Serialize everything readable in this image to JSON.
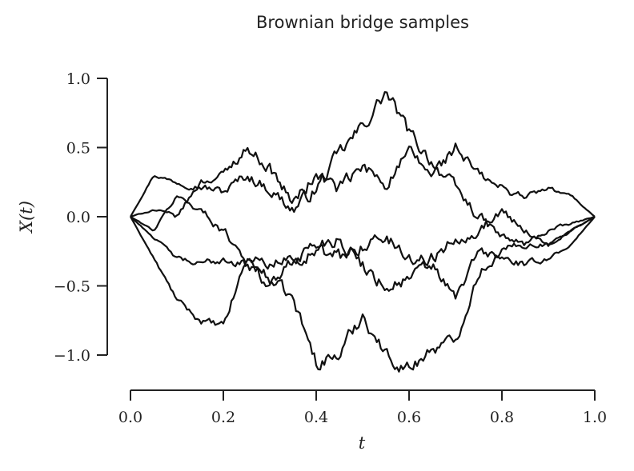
{
  "chart_data": {
    "type": "line",
    "title": "Brownian bridge samples",
    "xlabel": "t",
    "ylabel": "X(t)",
    "xlim": [
      0.0,
      1.0
    ],
    "ylim": [
      -1.25,
      1.0
    ],
    "x_ticks": [
      "0.0",
      "0.2",
      "0.4",
      "0.6",
      "0.8",
      "1.0"
    ],
    "y_ticks": [
      "1.0",
      "0.5",
      "0.0",
      "−0.5",
      "−1.0"
    ],
    "grid": false,
    "legend": "none",
    "color": "#111111",
    "series": [
      {
        "x": [
          0.0,
          0.05,
          0.1,
          0.15,
          0.2,
          0.25,
          0.3,
          0.35,
          0.4,
          0.45,
          0.5,
          0.55,
          0.6,
          0.65,
          0.7,
          0.75,
          0.8,
          0.85,
          0.9,
          0.95,
          1.0
        ],
        "values": [
          0.0,
          0.3,
          0.25,
          0.22,
          0.18,
          0.3,
          0.2,
          0.05,
          0.2,
          0.45,
          0.65,
          0.9,
          0.6,
          0.4,
          0.2,
          0.0,
          -0.15,
          -0.2,
          -0.1,
          -0.05,
          0.0
        ]
      },
      {
        "x": [
          0.0,
          0.05,
          0.1,
          0.15,
          0.2,
          0.25,
          0.3,
          0.35,
          0.4,
          0.45,
          0.5,
          0.55,
          0.6,
          0.65,
          0.7,
          0.75,
          0.8,
          0.85,
          0.9,
          0.95,
          1.0
        ],
        "values": [
          0.0,
          -0.3,
          -0.6,
          -0.75,
          -0.8,
          -0.3,
          -0.45,
          -0.6,
          -1.05,
          -1.0,
          -0.7,
          -1.0,
          -1.1,
          -0.95,
          -0.9,
          -0.4,
          -0.25,
          -0.2,
          -0.2,
          -0.1,
          0.0
        ]
      },
      {
        "x": [
          0.0,
          0.05,
          0.1,
          0.15,
          0.2,
          0.25,
          0.3,
          0.35,
          0.4,
          0.45,
          0.5,
          0.55,
          0.6,
          0.65,
          0.7,
          0.75,
          0.8,
          0.85,
          0.9,
          0.95,
          1.0
        ],
        "values": [
          0.0,
          0.05,
          0.0,
          0.25,
          0.3,
          0.5,
          0.35,
          0.1,
          0.3,
          0.2,
          0.35,
          0.25,
          0.45,
          0.3,
          0.5,
          0.3,
          0.2,
          0.15,
          0.2,
          0.15,
          0.0
        ]
      },
      {
        "x": [
          0.0,
          0.05,
          0.1,
          0.15,
          0.2,
          0.25,
          0.3,
          0.35,
          0.4,
          0.45,
          0.5,
          0.55,
          0.6,
          0.65,
          0.7,
          0.75,
          0.8,
          0.85,
          0.9,
          0.95,
          1.0
        ],
        "values": [
          0.0,
          -0.1,
          0.15,
          0.05,
          -0.1,
          -0.3,
          -0.35,
          -0.3,
          -0.2,
          -0.15,
          -0.35,
          -0.5,
          -0.45,
          -0.35,
          -0.6,
          -0.25,
          -0.3,
          -0.35,
          -0.3,
          -0.2,
          0.0
        ]
      },
      {
        "x": [
          0.0,
          0.05,
          0.1,
          0.15,
          0.2,
          0.25,
          0.3,
          0.35,
          0.4,
          0.45,
          0.5,
          0.55,
          0.6,
          0.65,
          0.7,
          0.75,
          0.8,
          0.85,
          0.9,
          0.95,
          1.0
        ],
        "values": [
          0.0,
          -0.15,
          -0.3,
          -0.35,
          -0.3,
          -0.35,
          -0.5,
          -0.3,
          -0.25,
          -0.3,
          -0.2,
          -0.15,
          -0.3,
          -0.3,
          -0.15,
          -0.1,
          0.05,
          -0.1,
          -0.2,
          -0.1,
          0.0
        ]
      }
    ]
  }
}
